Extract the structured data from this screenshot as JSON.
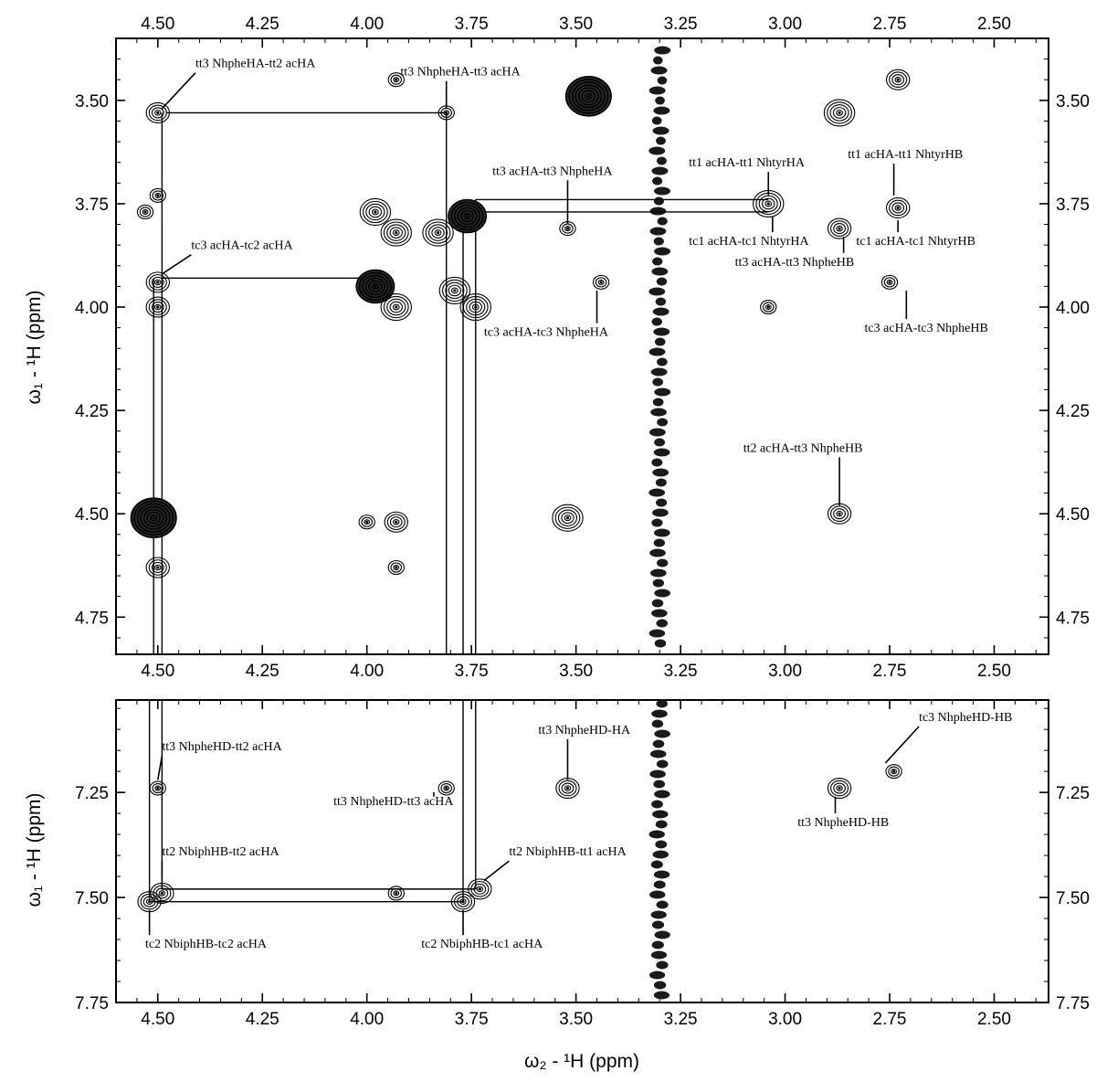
{
  "chart_data": [
    {
      "type": "scatter",
      "panel": "top",
      "x_axis": {
        "label": "ω₂ - ¹H  (ppm)",
        "ticks": [
          4.5,
          4.25,
          4.0,
          3.75,
          3.5,
          3.25,
          3.0,
          2.75,
          2.5
        ],
        "xlim": [
          4.6,
          2.37
        ],
        "reversed": true
      },
      "y_axis": {
        "label": "ω₁ - ¹H  (ppm)",
        "ticks": [
          3.5,
          3.75,
          4.0,
          4.25,
          4.5,
          4.75
        ],
        "ylim": [
          3.35,
          4.84
        ],
        "reversed": true
      },
      "ticklabels_x": [
        "4.50",
        "4.25",
        "4.00",
        "3.75",
        "3.50",
        "3.25",
        "3.00",
        "2.75",
        "2.50"
      ],
      "ticklabels_y": [
        "3.50",
        "3.75",
        "4.00",
        "4.25",
        "4.50",
        "4.75"
      ],
      "peaks": [
        {
          "x": 4.5,
          "y": 3.53,
          "size": 2
        },
        {
          "x": 3.93,
          "y": 3.45,
          "size": 1
        },
        {
          "x": 3.81,
          "y": 3.53,
          "size": 1
        },
        {
          "x": 3.47,
          "y": 3.49,
          "size": 5
        },
        {
          "x": 2.87,
          "y": 3.53,
          "size": 3
        },
        {
          "x": 2.73,
          "y": 3.45,
          "size": 2
        },
        {
          "x": 4.5,
          "y": 3.73,
          "size": 1
        },
        {
          "x": 4.53,
          "y": 3.77,
          "size": 1
        },
        {
          "x": 3.98,
          "y": 3.77,
          "size": 3
        },
        {
          "x": 3.93,
          "y": 3.82,
          "size": 3
        },
        {
          "x": 3.76,
          "y": 3.78,
          "size": 4
        },
        {
          "x": 3.83,
          "y": 3.82,
          "size": 3
        },
        {
          "x": 3.52,
          "y": 3.81,
          "size": 1
        },
        {
          "x": 3.04,
          "y": 3.75,
          "size": 3
        },
        {
          "x": 2.87,
          "y": 3.81,
          "size": 2
        },
        {
          "x": 2.73,
          "y": 3.76,
          "size": 2
        },
        {
          "x": 4.5,
          "y": 3.94,
          "size": 2
        },
        {
          "x": 4.5,
          "y": 4.0,
          "size": 2
        },
        {
          "x": 3.98,
          "y": 3.95,
          "size": 4
        },
        {
          "x": 3.93,
          "y": 4.0,
          "size": 3
        },
        {
          "x": 3.79,
          "y": 3.96,
          "size": 3
        },
        {
          "x": 3.74,
          "y": 4.0,
          "size": 3
        },
        {
          "x": 3.44,
          "y": 3.94,
          "size": 1
        },
        {
          "x": 2.75,
          "y": 3.94,
          "size": 1
        },
        {
          "x": 3.04,
          "y": 4.0,
          "size": 1
        },
        {
          "x": 4.51,
          "y": 4.51,
          "size": 5
        },
        {
          "x": 4.5,
          "y": 4.63,
          "size": 2
        },
        {
          "x": 4.0,
          "y": 4.52,
          "size": 1
        },
        {
          "x": 3.93,
          "y": 4.52,
          "size": 2
        },
        {
          "x": 3.93,
          "y": 4.63,
          "size": 1
        },
        {
          "x": 3.52,
          "y": 4.51,
          "size": 3
        },
        {
          "x": 2.87,
          "y": 4.5,
          "size": 2
        }
      ],
      "annotations": [
        {
          "text": "tt3 NhpheHA-tt2 acHA",
          "tx": 4.41,
          "ty": 3.42,
          "px": 4.49,
          "py": 3.52
        },
        {
          "text": "tt3 NhpheHA-tt3 acHA",
          "tx": 3.92,
          "ty": 3.44,
          "px": 3.81,
          "py": 3.52
        },
        {
          "text": "tt3 acHA-tt3 NhpheHA",
          "tx": 3.7,
          "ty": 3.68,
          "px": 3.52,
          "py": 3.8
        },
        {
          "text": "tt1 acHA-tt1 NhtyrHA",
          "tx": 3.23,
          "ty": 3.66,
          "px": 3.04,
          "py": 3.73
        },
        {
          "text": "tt1 acHA-tt1 NhtyrHB",
          "tx": 2.85,
          "ty": 3.64,
          "px": 2.74,
          "py": 3.73
        },
        {
          "text": "tc3 acHA-tc2 acHA",
          "tx": 4.42,
          "ty": 3.86,
          "px": 4.49,
          "py": 3.92
        },
        {
          "text": "tc1 acHA-tc1 NhtyrHA",
          "tx": 3.23,
          "ty": 3.85,
          "px": 3.03,
          "py": 3.78
        },
        {
          "text": "tc1 acHA-tc1 NhtyrHB",
          "tx": 2.83,
          "ty": 3.85,
          "px": 2.73,
          "py": 3.79
        },
        {
          "text": "tt3 acHA-tt3 NhpheHB",
          "tx": 3.12,
          "ty": 3.9,
          "px": 2.86,
          "py": 3.83
        },
        {
          "text": "tc3 acHA-tc3 NhpheHA",
          "tx": 3.72,
          "ty": 4.07,
          "px": 3.45,
          "py": 3.96
        },
        {
          "text": "tc3 acHA-tc3 NhpheHB",
          "tx": 2.81,
          "ty": 4.06,
          "px": 2.71,
          "py": 3.96
        },
        {
          "text": "tt2 acHA-tt3 NhpheHB",
          "tx": 3.1,
          "ty": 4.35,
          "px": 2.87,
          "py": 4.48
        }
      ],
      "connectors": [
        {
          "points": [
            [
              4.48,
              3.53
            ],
            [
              3.81,
              3.53
            ],
            [
              3.81,
              4.84
            ]
          ]
        },
        {
          "points": [
            [
              4.49,
              3.53
            ],
            [
              4.49,
              4.84
            ]
          ]
        },
        {
          "points": [
            [
              4.51,
              3.93
            ],
            [
              4.51,
              4.84
            ]
          ]
        },
        {
          "points": [
            [
              4.49,
              3.93
            ],
            [
              3.97,
              3.93
            ]
          ]
        },
        {
          "points": [
            [
              3.74,
              3.74
            ],
            [
              3.04,
              3.74
            ]
          ]
        },
        {
          "points": [
            [
              3.77,
              3.77
            ],
            [
              3.04,
              3.77
            ]
          ]
        },
        {
          "points": [
            [
              3.77,
              3.77
            ],
            [
              3.77,
              4.84
            ]
          ]
        },
        {
          "points": [
            [
              3.74,
              3.74
            ],
            [
              3.74,
              4.84
            ]
          ]
        }
      ],
      "ridge": {
        "x": 3.3,
        "y_from": 3.37,
        "y_to": 4.84
      }
    },
    {
      "type": "scatter",
      "panel": "bottom",
      "x_axis": {
        "label": "ω₂ - ¹H  (ppm)",
        "ticks": [
          4.5,
          4.25,
          4.0,
          3.75,
          3.5,
          3.25,
          3.0,
          2.75,
          2.5
        ],
        "xlim": [
          4.6,
          2.37
        ],
        "reversed": true
      },
      "y_axis": {
        "label": "ω₁ - ¹H  (ppm)",
        "ticks": [
          7.25,
          7.5,
          7.75
        ],
        "ylim": [
          7.03,
          7.75
        ],
        "reversed": true
      },
      "ticklabels_x": [
        "4.50",
        "4.25",
        "4.00",
        "3.75",
        "3.50",
        "3.25",
        "3.00",
        "2.75",
        "2.50"
      ],
      "ticklabels_y": [
        "7.25",
        "7.50",
        "7.75"
      ],
      "peaks": [
        {
          "x": 4.5,
          "y": 7.24,
          "size": 1
        },
        {
          "x": 3.81,
          "y": 7.24,
          "size": 1
        },
        {
          "x": 3.52,
          "y": 7.24,
          "size": 2
        },
        {
          "x": 2.87,
          "y": 7.24,
          "size": 2
        },
        {
          "x": 2.74,
          "y": 7.2,
          "size": 1
        },
        {
          "x": 4.52,
          "y": 7.51,
          "size": 2
        },
        {
          "x": 4.49,
          "y": 7.49,
          "size": 2
        },
        {
          "x": 3.93,
          "y": 7.49,
          "size": 1
        },
        {
          "x": 3.77,
          "y": 7.51,
          "size": 2
        },
        {
          "x": 3.73,
          "y": 7.48,
          "size": 2
        }
      ],
      "annotations": [
        {
          "text": "tt3 NhpheHD-tt2 acHA",
          "tx": 4.49,
          "ty": 7.15,
          "px": 4.5,
          "py": 7.22
        },
        {
          "text": "tt3 NhpheHD-HA",
          "tx": 3.59,
          "ty": 7.11,
          "px": 3.52,
          "py": 7.22
        },
        {
          "text": "tc3 NhpheHD-HB",
          "tx": 2.68,
          "ty": 7.08,
          "px": 2.76,
          "py": 7.18
        },
        {
          "text": "tt3 NhpheHD-tt3 acHA",
          "tx": 4.08,
          "ty": 7.28,
          "px": 3.84,
          "py": 7.26
        },
        {
          "text": "tt3 NhpheHD-HB",
          "tx": 2.97,
          "ty": 7.33,
          "px": 2.88,
          "py": 7.26
        },
        {
          "text": "tt2 NbiphHB-tt2 acHA",
          "tx": 4.49,
          "ty": 7.4,
          "px": 4.49,
          "py": 7.47
        },
        {
          "text": "tt2 NbiphHB-tt1 acHA",
          "tx": 3.66,
          "ty": 7.4,
          "px": 3.72,
          "py": 7.46
        },
        {
          "text": "tc2 NbiphHB-tc2 acHA",
          "tx": 4.53,
          "ty": 7.62,
          "px": 4.52,
          "py": 7.53
        },
        {
          "text": "tc2 NbiphHB-tc1 acHA",
          "tx": 3.87,
          "ty": 7.62,
          "px": 3.77,
          "py": 7.53
        }
      ],
      "connectors": [
        {
          "points": [
            [
              4.52,
              7.03
            ],
            [
              4.52,
              7.51
            ],
            [
              3.77,
              7.51
            ],
            [
              3.77,
              7.03
            ]
          ]
        },
        {
          "points": [
            [
              4.49,
              7.03
            ],
            [
              4.49,
              7.48
            ],
            [
              3.74,
              7.48
            ],
            [
              3.74,
              7.03
            ]
          ]
        }
      ],
      "ridge": {
        "x": 3.3,
        "y_from": 7.03,
        "y_to": 7.75
      }
    }
  ]
}
